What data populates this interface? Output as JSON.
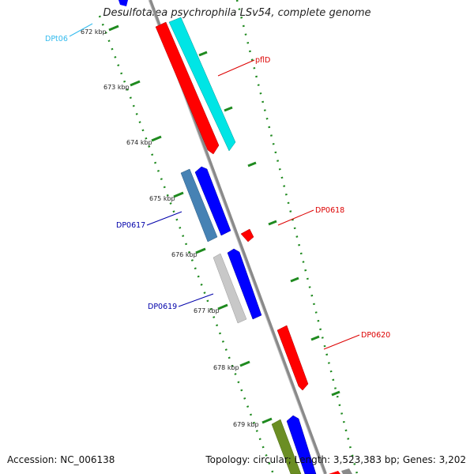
{
  "title": "Desulfotalea psychrophila LSv54, complete genome",
  "accession": "Accession: NC_006138",
  "summary": "Topology: circular; Length: 3,523,383 bp; Genes: 3,202",
  "ticks": [
    "672 kbp",
    "673 kbp",
    "674 kbp",
    "675 kbp",
    "676 kbp",
    "677 kbp",
    "678 kbp",
    "679 kbp"
  ],
  "gene_labels": [
    {
      "text": "DPt06",
      "color": "#33bbee"
    },
    {
      "text": "pflD",
      "color": "#dd0000"
    },
    {
      "text": "DP0618",
      "color": "#dd0000"
    },
    {
      "text": "DP0617",
      "color": "#0000aa"
    },
    {
      "text": "DP0619",
      "color": "#0000aa"
    },
    {
      "text": "DP0620",
      "color": "#dd0000"
    }
  ],
  "colors": {
    "backbone": "#8a8a8a",
    "forward_cds": "#ff0000",
    "reverse_cds": "#0000ff",
    "trna": "#00e5e5",
    "steelblue": "#4682b4",
    "grey": "#c8c8c8",
    "olive": "#6b8e23",
    "ticks": "#1f8a1f"
  }
}
